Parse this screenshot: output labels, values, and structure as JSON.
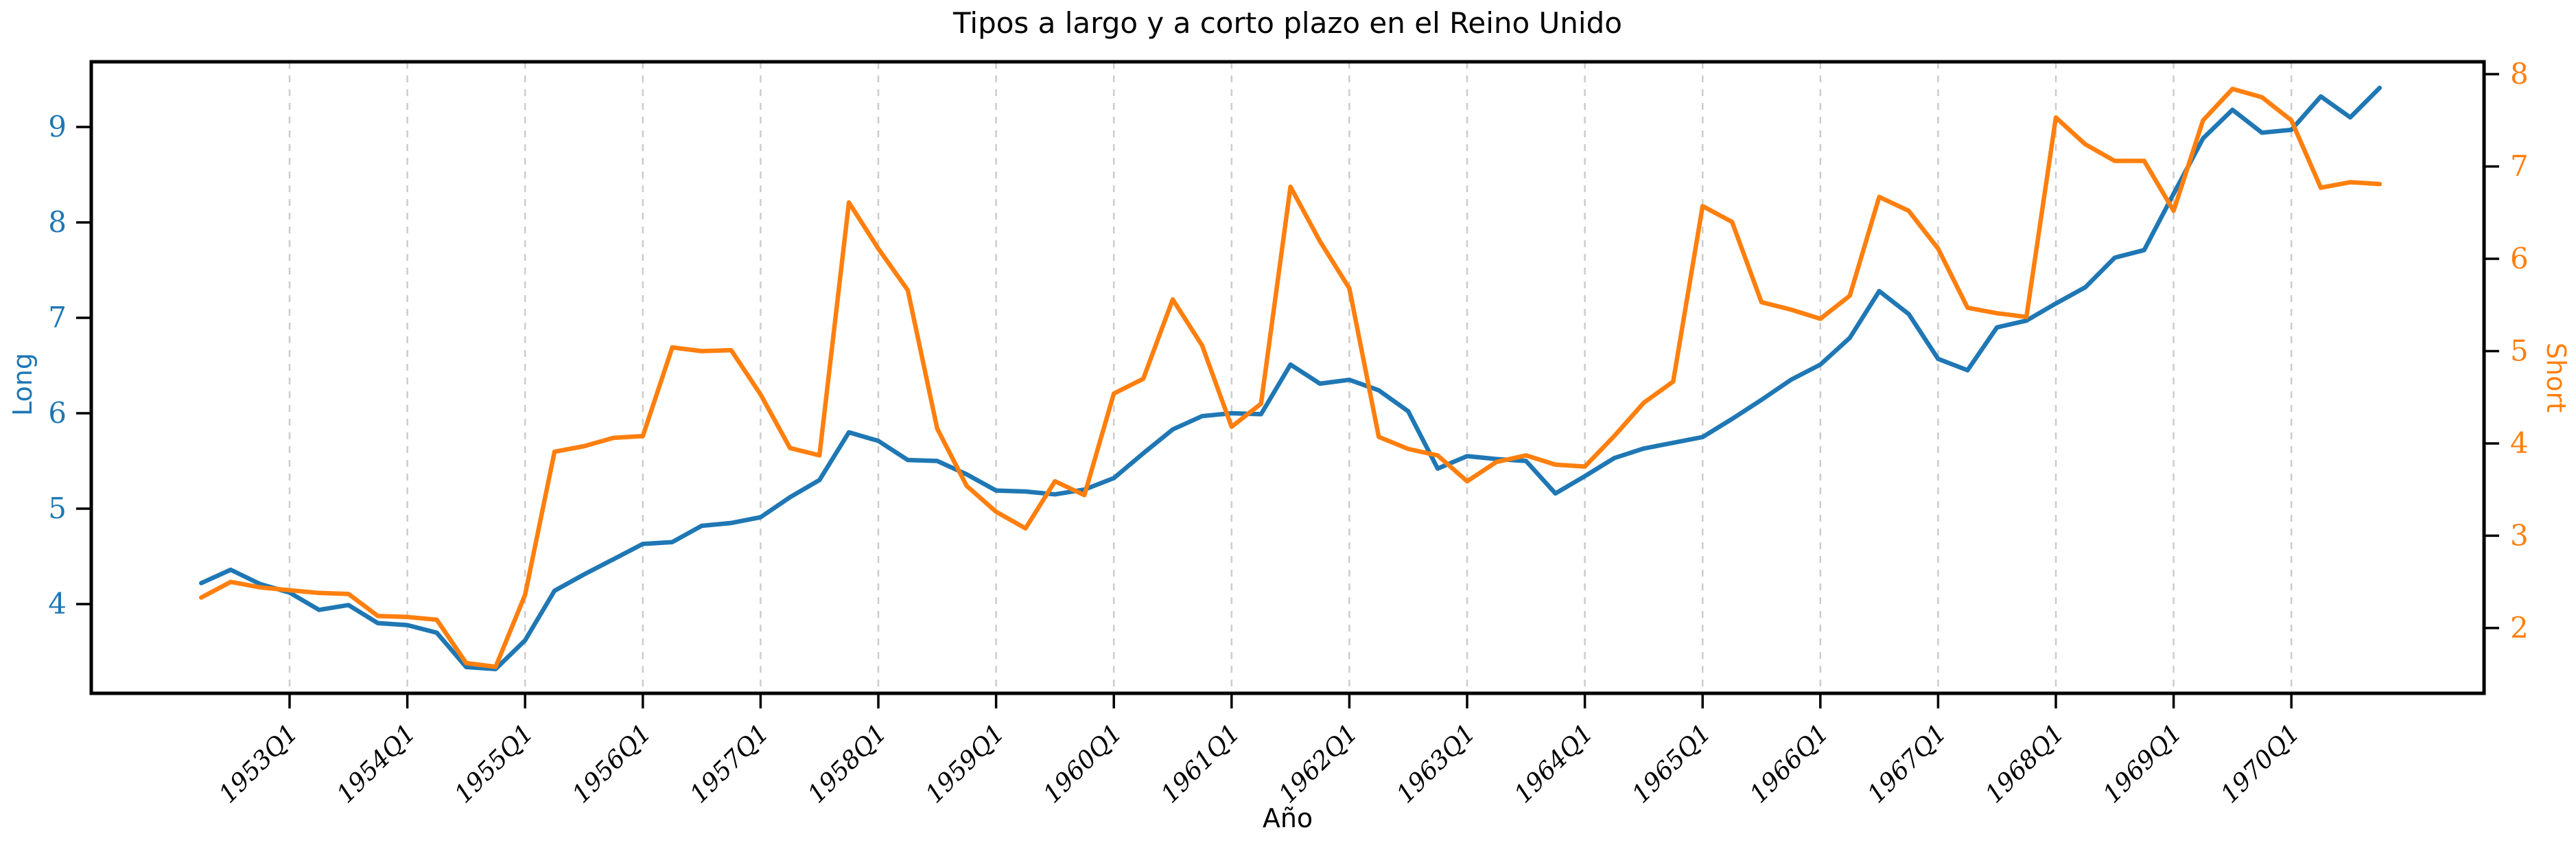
{
  "title": "Tipos a largo y a corto plazo en el Reino Unido",
  "xlabel": "Año",
  "left_axis_label": "Long",
  "right_axis_label": "Short",
  "colors": {
    "long": "#1f77b4",
    "short": "#ff7f0e",
    "grid": "#cccccc",
    "spine": "#000000",
    "title": "#000000"
  },
  "chart_data": {
    "type": "line",
    "x_tick_labels": [
      "1953Q1",
      "1954Q1",
      "1955Q1",
      "1956Q1",
      "1957Q1",
      "1958Q1",
      "1959Q1",
      "1960Q1",
      "1961Q1",
      "1962Q1",
      "1963Q1",
      "1964Q1",
      "1965Q1",
      "1966Q1",
      "1967Q1",
      "1968Q1",
      "1969Q1",
      "1970Q1"
    ],
    "left_ticks": [
      4,
      5,
      6,
      7,
      8,
      9
    ],
    "right_ticks": [
      2,
      3,
      4,
      5,
      6,
      7,
      8
    ],
    "ylim_left": [
      3.065,
      9.683
    ],
    "ylim_right": [
      1.293,
      8.134
    ],
    "xlim_years": [
      1951.31,
      1971.64
    ],
    "grid": "vertical-dashed",
    "legend_position": "none",
    "quarters": [
      "1952Q2",
      "1952Q3",
      "1952Q4",
      "1953Q1",
      "1953Q2",
      "1953Q3",
      "1953Q4",
      "1954Q1",
      "1954Q2",
      "1954Q3",
      "1954Q4",
      "1955Q1",
      "1955Q2",
      "1955Q3",
      "1955Q4",
      "1956Q1",
      "1956Q2",
      "1956Q3",
      "1956Q4",
      "1957Q1",
      "1957Q2",
      "1957Q3",
      "1957Q4",
      "1958Q1",
      "1958Q2",
      "1958Q3",
      "1958Q4",
      "1959Q1",
      "1959Q2",
      "1959Q3",
      "1959Q4",
      "1960Q1",
      "1960Q2",
      "1960Q3",
      "1960Q4",
      "1961Q1",
      "1961Q2",
      "1961Q3",
      "1961Q4",
      "1962Q1",
      "1962Q2",
      "1962Q3",
      "1962Q4",
      "1963Q1",
      "1963Q2",
      "1963Q3",
      "1963Q4",
      "1964Q1",
      "1964Q2",
      "1964Q3",
      "1964Q4",
      "1965Q1",
      "1965Q2",
      "1965Q3",
      "1965Q4",
      "1966Q1",
      "1966Q2",
      "1966Q3",
      "1966Q4",
      "1967Q1",
      "1967Q2",
      "1967Q3",
      "1967Q4",
      "1968Q1",
      "1968Q2",
      "1968Q3",
      "1968Q4",
      "1969Q1",
      "1969Q2",
      "1969Q3",
      "1969Q4",
      "1970Q1",
      "1970Q2",
      "1970Q3",
      "1970Q4"
    ],
    "series": [
      {
        "name": "Long",
        "axis": "left",
        "color": "#1f77b4",
        "values": [
          4.22,
          4.36,
          4.21,
          4.12,
          3.94,
          3.99,
          3.8,
          3.78,
          3.7,
          3.34,
          3.32,
          3.62,
          4.14,
          4.31,
          4.47,
          4.63,
          4.65,
          4.82,
          4.85,
          4.91,
          5.12,
          5.3,
          5.8,
          5.71,
          5.51,
          5.5,
          5.36,
          5.19,
          5.18,
          5.15,
          5.2,
          5.32,
          5.58,
          5.83,
          5.97,
          6.0,
          5.99,
          6.51,
          6.31,
          6.35,
          6.24,
          6.02,
          5.42,
          5.55,
          5.52,
          5.5,
          5.16,
          5.34,
          5.53,
          5.63,
          5.69,
          5.75,
          5.94,
          6.14,
          6.35,
          6.51,
          6.79,
          7.28,
          7.04,
          6.57,
          6.45,
          6.9,
          6.97,
          7.15,
          7.32,
          7.63,
          7.71,
          8.3,
          8.88,
          9.18,
          8.94,
          8.97,
          9.32,
          9.1,
          9.41
        ]
      },
      {
        "name": "Short",
        "axis": "right",
        "color": "#ff7f0e",
        "values": [
          2.33,
          2.5,
          2.44,
          2.41,
          2.38,
          2.37,
          2.13,
          2.12,
          2.09,
          1.62,
          1.58,
          2.36,
          3.91,
          3.97,
          4.06,
          4.08,
          5.04,
          5.0,
          5.01,
          4.53,
          3.95,
          3.87,
          6.61,
          6.11,
          5.66,
          4.16,
          3.54,
          3.26,
          3.08,
          3.59,
          3.44,
          4.54,
          4.7,
          5.56,
          5.06,
          4.18,
          4.43,
          6.78,
          6.19,
          5.68,
          4.07,
          3.94,
          3.87,
          3.59,
          3.8,
          3.87,
          3.77,
          3.75,
          4.08,
          4.44,
          4.67,
          6.57,
          6.4,
          5.53,
          5.45,
          5.35,
          5.6,
          6.67,
          6.52,
          6.11,
          5.47,
          5.41,
          5.37,
          7.53,
          7.24,
          7.06,
          7.06,
          6.52,
          7.5,
          7.84,
          7.75,
          7.5,
          6.77,
          6.83,
          6.81
        ]
      }
    ]
  }
}
